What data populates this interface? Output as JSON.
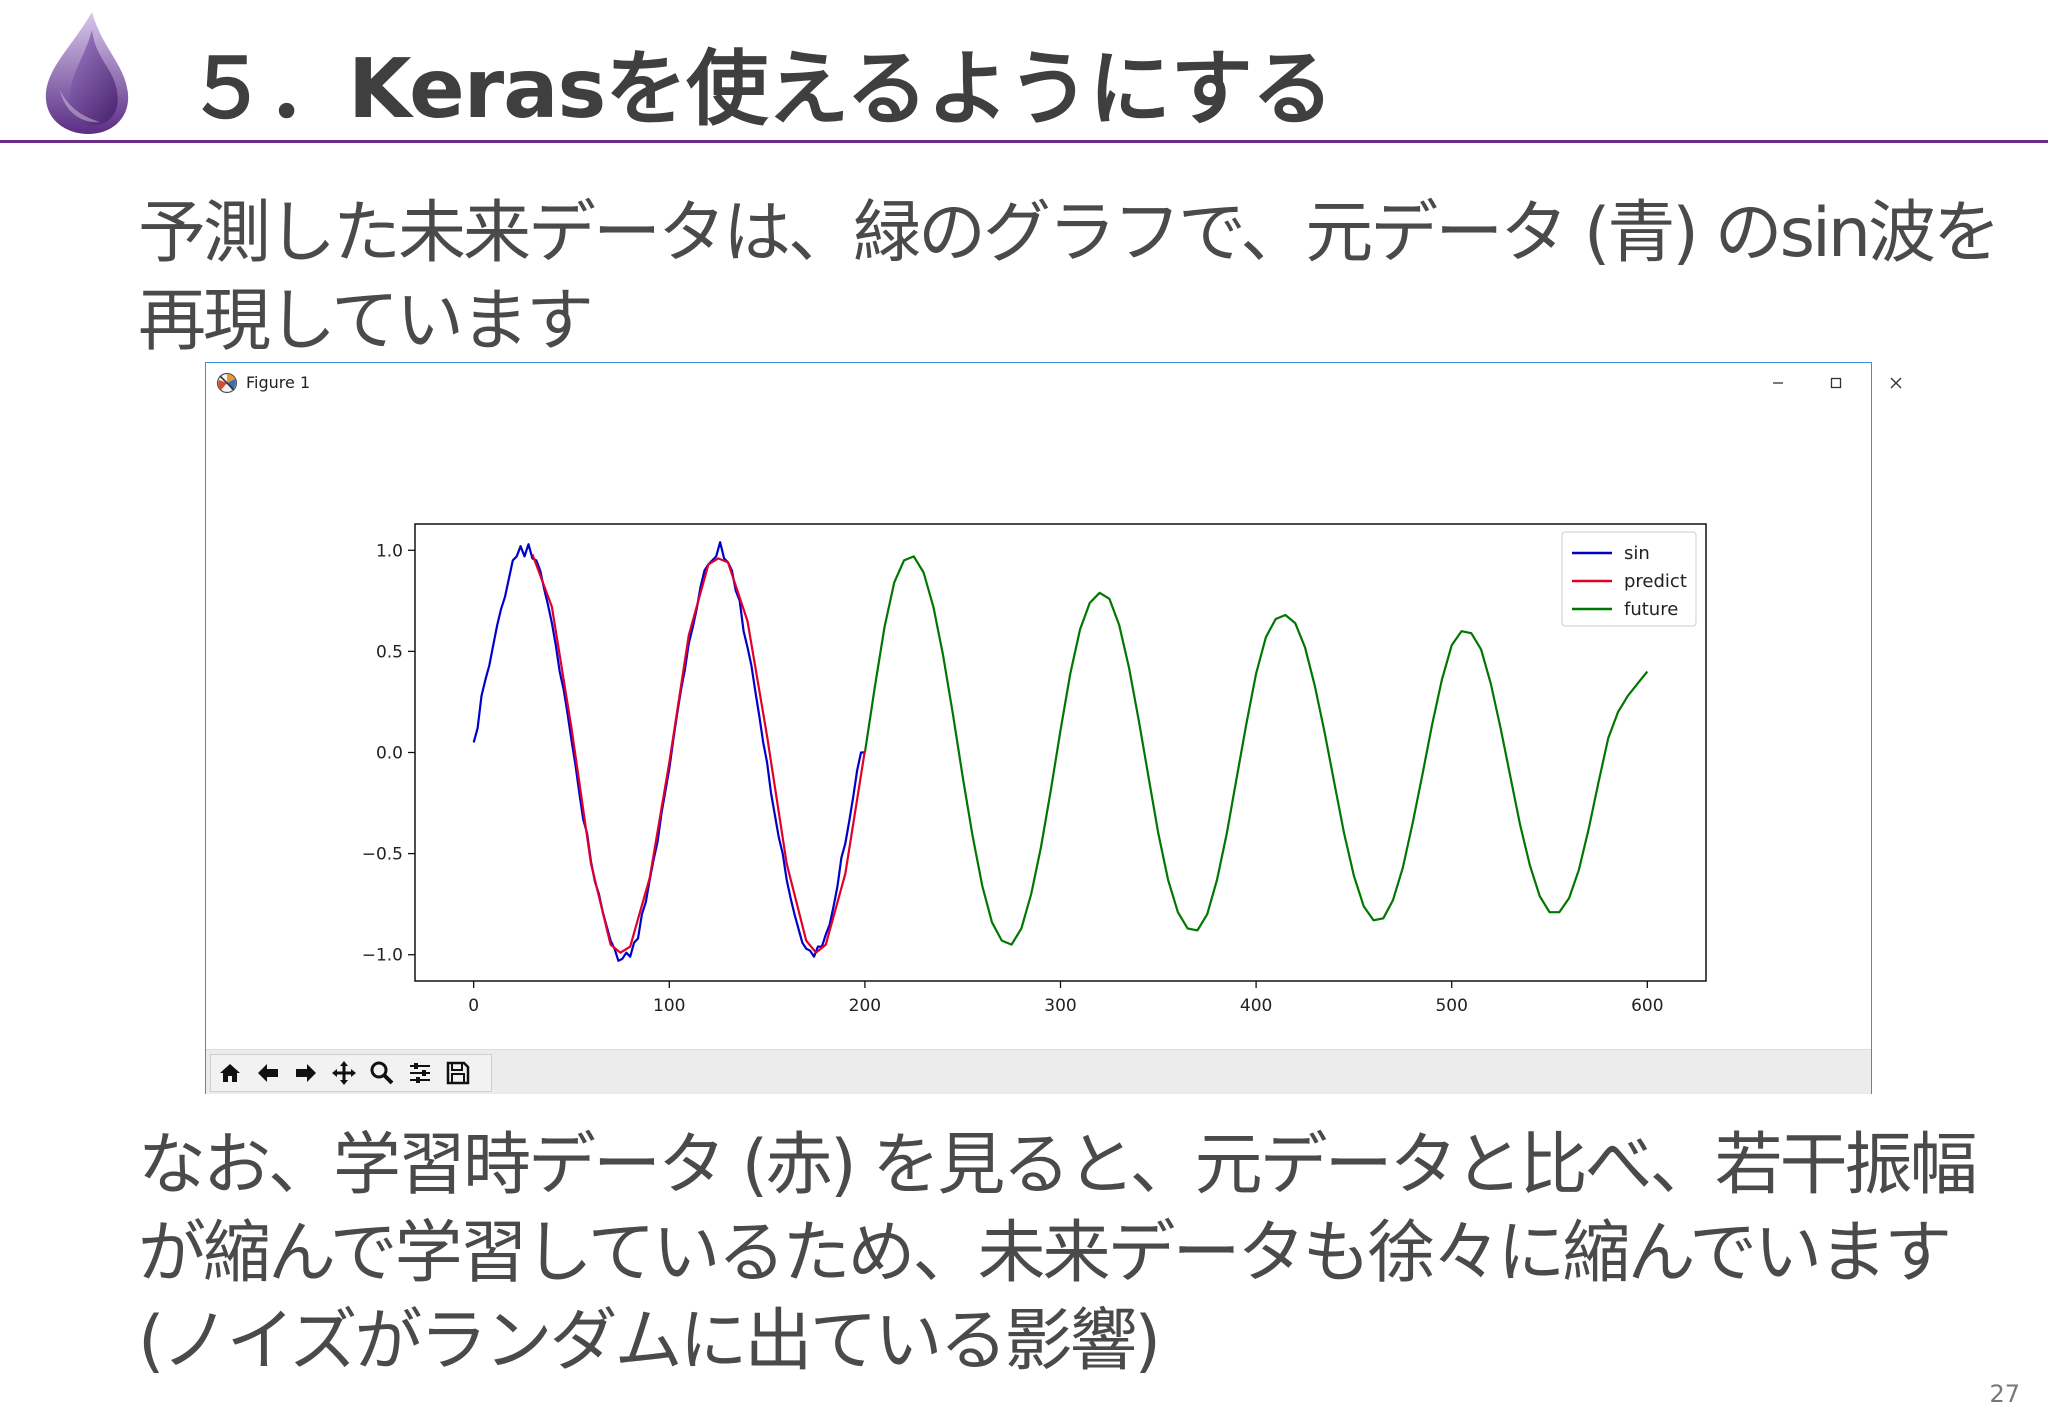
{
  "slide": {
    "title": "５．Kerasを使えるようにする",
    "paragraph1": [
      "予測した未来データは、緑のグラフで、元データ (青) のsin波を",
      "再現しています"
    ],
    "paragraph2": [
      "なお、学習時データ (赤) を見ると、元データと比べ、若干振幅",
      "が縮んで学習しているため、未来データも徐々に縮んでいます",
      "(ノイズがランダムに出ている影響)"
    ],
    "page_number": "27"
  },
  "window": {
    "title": "Figure 1",
    "controls": [
      "minimize",
      "maximize",
      "close"
    ]
  },
  "toolbar": {
    "buttons": [
      "home-icon",
      "back-arrow-icon",
      "forward-arrow-icon",
      "pan-icon",
      "zoom-icon",
      "subplots-icon",
      "save-icon"
    ]
  },
  "chart_data": {
    "type": "line",
    "xlim": [
      -30,
      630
    ],
    "ylim": [
      -1.13,
      1.13
    ],
    "xticks": [
      0,
      100,
      200,
      300,
      400,
      500,
      600
    ],
    "yticks": [
      -1.0,
      -0.5,
      0.0,
      0.5,
      1.0
    ],
    "xtick_labels": [
      "0",
      "100",
      "200",
      "300",
      "400",
      "500",
      "600"
    ],
    "ytick_labels": [
      "−1.0",
      "−0.5",
      "0.0",
      "0.5",
      "1.0"
    ],
    "legend_position": "top-right",
    "series": [
      {
        "name": "sin",
        "color": "#0000cc",
        "x": [
          0,
          2,
          4,
          6,
          8,
          10,
          12,
          14,
          16,
          18,
          20,
          22,
          24,
          26,
          28,
          30,
          32,
          34,
          36,
          38,
          40,
          42,
          44,
          46,
          48,
          50,
          52,
          54,
          56,
          58,
          60,
          62,
          64,
          66,
          68,
          70,
          72,
          74,
          76,
          78,
          80,
          82,
          84,
          86,
          88,
          90,
          92,
          94,
          96,
          98,
          100,
          102,
          104,
          106,
          108,
          110,
          112,
          114,
          116,
          118,
          120,
          122,
          124,
          126,
          128,
          130,
          132,
          134,
          136,
          138,
          140,
          142,
          144,
          146,
          148,
          150,
          152,
          154,
          156,
          158,
          160,
          162,
          164,
          166,
          168,
          170,
          172,
          174,
          176,
          178,
          180,
          182,
          184,
          186,
          188,
          190,
          192,
          194,
          196,
          198,
          200
        ],
        "y": [
          0.05,
          0.12,
          0.28,
          0.36,
          0.43,
          0.53,
          0.63,
          0.71,
          0.77,
          0.86,
          0.95,
          0.97,
          1.02,
          0.97,
          1.03,
          0.96,
          0.95,
          0.9,
          0.81,
          0.73,
          0.64,
          0.53,
          0.4,
          0.31,
          0.19,
          0.06,
          -0.06,
          -0.2,
          -0.33,
          -0.4,
          -0.54,
          -0.64,
          -0.7,
          -0.79,
          -0.86,
          -0.93,
          -0.97,
          -1.03,
          -1.02,
          -0.99,
          -1.01,
          -0.94,
          -0.92,
          -0.8,
          -0.74,
          -0.63,
          -0.53,
          -0.44,
          -0.3,
          -0.19,
          -0.08,
          0.06,
          0.19,
          0.31,
          0.41,
          0.54,
          0.62,
          0.71,
          0.82,
          0.9,
          0.93,
          0.95,
          0.97,
          1.04,
          0.96,
          0.94,
          0.9,
          0.8,
          0.75,
          0.6,
          0.52,
          0.43,
          0.3,
          0.18,
          0.05,
          -0.05,
          -0.2,
          -0.31,
          -0.42,
          -0.5,
          -0.63,
          -0.72,
          -0.8,
          -0.87,
          -0.94,
          -0.97,
          -0.98,
          -1.01,
          -0.96,
          -0.96,
          -0.9,
          -0.85,
          -0.76,
          -0.66,
          -0.52,
          -0.45,
          -0.34,
          -0.22,
          -0.09,
          0.0,
          0.0
        ]
      },
      {
        "name": "predict",
        "color": "#e0002a",
        "x": [
          30,
          40,
          50,
          60,
          70,
          75,
          80,
          90,
          100,
          110,
          120,
          125,
          130,
          140,
          150,
          160,
          170,
          175,
          180,
          190,
          200
        ],
        "y": [
          0.98,
          0.72,
          0.12,
          -0.55,
          -0.95,
          -0.99,
          -0.96,
          -0.62,
          -0.05,
          0.58,
          0.93,
          0.96,
          0.94,
          0.65,
          0.08,
          -0.55,
          -0.93,
          -0.99,
          -0.95,
          -0.6,
          0.01
        ]
      },
      {
        "name": "future",
        "color": "#007700",
        "x": [
          200,
          205,
          210,
          215,
          220,
          225,
          230,
          235,
          240,
          245,
          250,
          255,
          260,
          265,
          270,
          275,
          280,
          285,
          290,
          295,
          300,
          305,
          310,
          315,
          320,
          325,
          330,
          335,
          340,
          345,
          350,
          355,
          360,
          365,
          370,
          375,
          380,
          385,
          390,
          395,
          400,
          405,
          410,
          415,
          420,
          425,
          430,
          435,
          440,
          445,
          450,
          455,
          460,
          465,
          470,
          475,
          480,
          485,
          490,
          495,
          500,
          505,
          510,
          515,
          520,
          525,
          530,
          535,
          540,
          545,
          550,
          555,
          560,
          565,
          570,
          575,
          580,
          585,
          590,
          595,
          600
        ],
        "y": [
          0.0,
          0.32,
          0.62,
          0.84,
          0.95,
          0.97,
          0.89,
          0.72,
          0.48,
          0.19,
          -0.12,
          -0.41,
          -0.66,
          -0.84,
          -0.93,
          -0.95,
          -0.87,
          -0.7,
          -0.47,
          -0.19,
          0.11,
          0.39,
          0.61,
          0.74,
          0.79,
          0.76,
          0.63,
          0.42,
          0.16,
          -0.12,
          -0.4,
          -0.63,
          -0.79,
          -0.87,
          -0.88,
          -0.8,
          -0.63,
          -0.4,
          -0.13,
          0.14,
          0.39,
          0.57,
          0.66,
          0.68,
          0.64,
          0.52,
          0.33,
          0.1,
          -0.15,
          -0.4,
          -0.61,
          -0.76,
          -0.83,
          -0.82,
          -0.73,
          -0.57,
          -0.35,
          -0.11,
          0.14,
          0.36,
          0.53,
          0.6,
          0.59,
          0.51,
          0.34,
          0.12,
          -0.12,
          -0.36,
          -0.56,
          -0.71,
          -0.79,
          -0.79,
          -0.72,
          -0.58,
          -0.38,
          -0.15,
          0.07,
          0.2,
          0.28,
          0.34,
          0.4
        ]
      }
    ]
  }
}
